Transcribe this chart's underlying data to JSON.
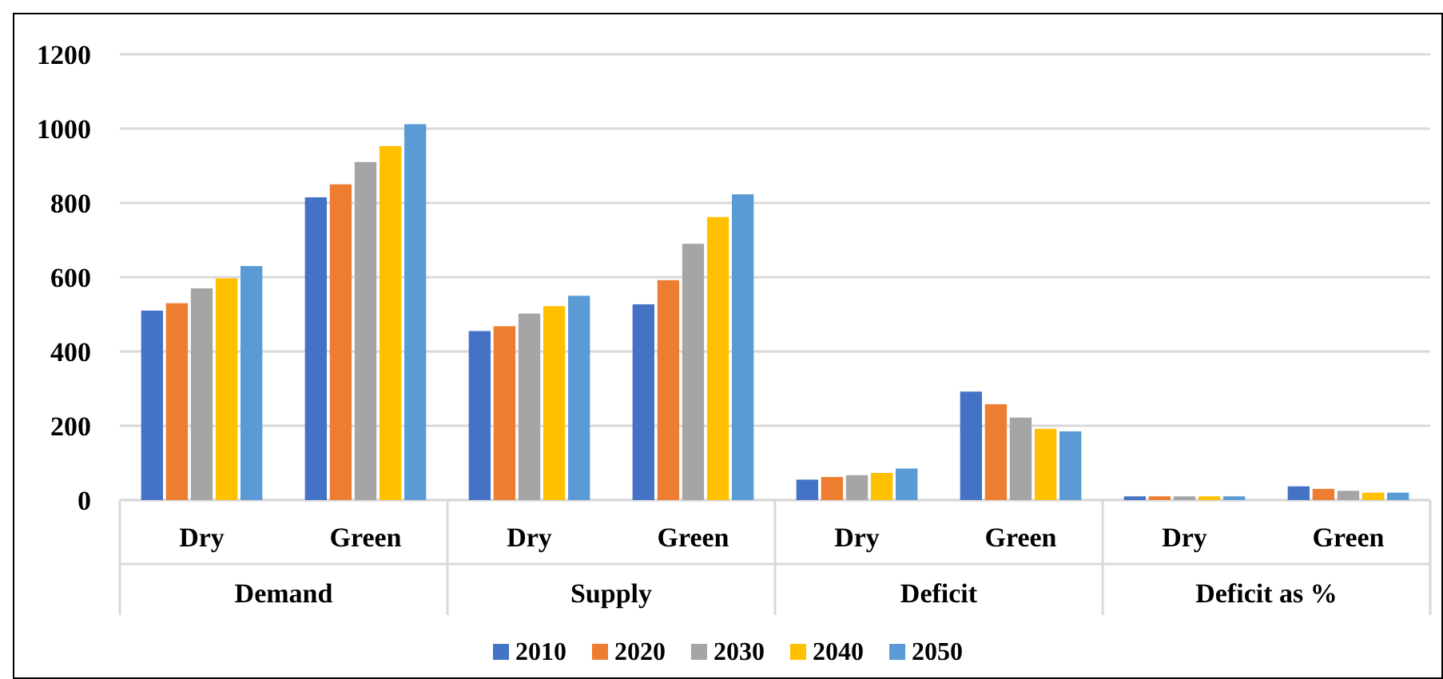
{
  "chart_data": {
    "type": "bar",
    "categories": [
      "Dry",
      "Green",
      "Dry",
      "Green",
      "Dry",
      "Green",
      "Dry",
      "Green"
    ],
    "annotations": [
      "Demand",
      "Supply",
      "Deficit",
      "Deficit as %"
    ],
    "series": [
      {
        "name": "2010",
        "color": "#4472c4",
        "values": [
          510,
          815,
          455,
          527,
          55,
          292,
          10,
          37
        ]
      },
      {
        "name": "2020",
        "color": "#ed7d31",
        "values": [
          530,
          850,
          468,
          592,
          62,
          258,
          10,
          30
        ]
      },
      {
        "name": "2030",
        "color": "#a5a5a5",
        "values": [
          570,
          910,
          502,
          690,
          67,
          222,
          10,
          25
        ]
      },
      {
        "name": "2040",
        "color": "#ffc000",
        "values": [
          597,
          953,
          522,
          762,
          73,
          192,
          10,
          20
        ]
      },
      {
        "name": "2050",
        "color": "#5b9bd5",
        "values": [
          630,
          1012,
          550,
          823,
          85,
          185,
          10,
          20
        ]
      }
    ],
    "ylim": [
      0,
      1200
    ],
    "yticks": [
      0,
      200,
      400,
      600,
      800,
      1000,
      1200
    ],
    "grid": "y",
    "legend": "bottom"
  }
}
